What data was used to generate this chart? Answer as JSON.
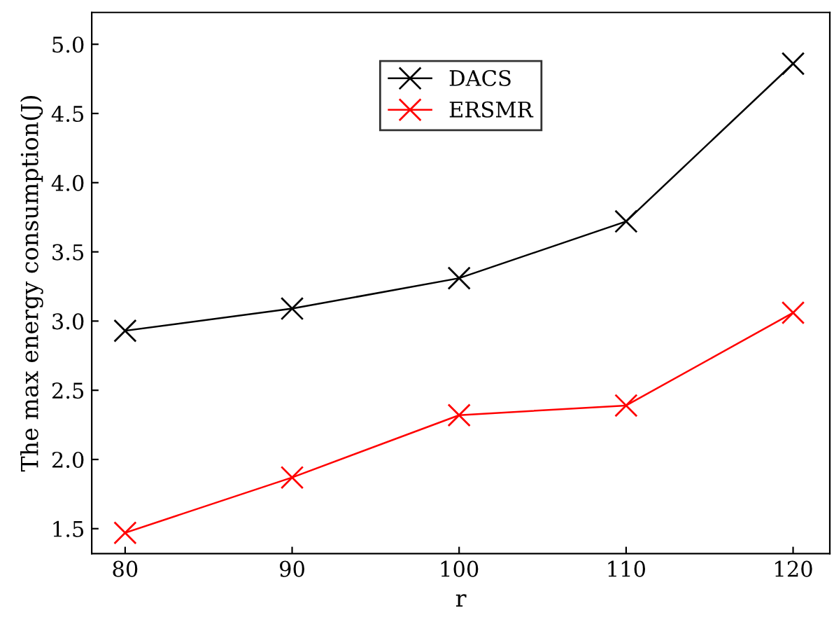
{
  "chart_data": {
    "type": "line",
    "xlabel": "r",
    "ylabel": "The max energy consumption(J)",
    "x": [
      80,
      90,
      100,
      110,
      120
    ],
    "series": [
      {
        "name": "DACS",
        "color": "#000000",
        "values": [
          2.93,
          3.09,
          3.31,
          3.72,
          4.86
        ]
      },
      {
        "name": "ERSMR",
        "color": "#ff0000",
        "values": [
          1.47,
          1.87,
          2.32,
          2.39,
          3.06
        ]
      }
    ],
    "xlim": [
      78,
      122.2
    ],
    "xticks": [
      80,
      90,
      100,
      110,
      120
    ],
    "ylim": [
      1.32,
      5.23
    ],
    "yticks": [
      1.5,
      {
        "value": 2,
        "label": "2.0"
      },
      2.5,
      {
        "value": 3,
        "label": "3.0"
      },
      3.5,
      {
        "value": 4,
        "label": "4.0"
      },
      4.5,
      {
        "value": 5,
        "label": "5.0"
      }
    ],
    "grid": false,
    "legend": "top",
    "marker": "cross",
    "line_style": "solid"
  }
}
